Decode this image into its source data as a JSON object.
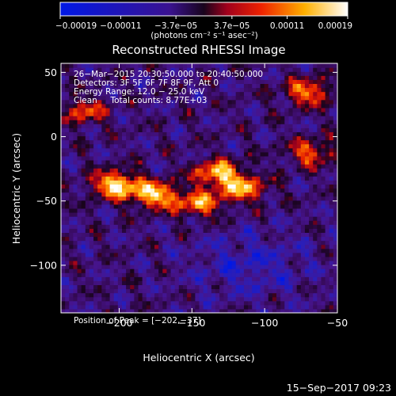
{
  "chart_data": {
    "type": "heatmap",
    "title": "Reconstructed RHESSI Image",
    "xlabel": "Heliocentric X (arcsec)",
    "ylabel": "Heliocentric Y (arcsec)",
    "xlim": [
      -240,
      -50
    ],
    "ylim": [
      -137,
      57
    ],
    "x_ticks": [
      -200,
      -150,
      -100,
      -50
    ],
    "y_ticks": [
      50,
      0,
      -50,
      -100
    ],
    "x_tick_labels": [
      "−200",
      "−150",
      "−100",
      "−50"
    ],
    "y_tick_labels": [
      "50",
      "0",
      "−50",
      "−100"
    ],
    "colorbar": {
      "min": -0.00019,
      "max": 0.00019,
      "tick_values": [
        -0.00019,
        -0.00011,
        -3.7e-05,
        3.7e-05,
        0.00011,
        0.00019
      ],
      "tick_labels": [
        "−0.00019",
        "−0.00011",
        "−3.7e−05",
        "3.7e−05",
        "0.00011",
        "0.00019"
      ],
      "units": "(photons cm⁻² s⁻¹ asec⁻²)"
    },
    "annotations": [
      "26−Mar−2015 20:30:50.000 to 20:40:50.000",
      "Detectors: 3F 5F 6F 7F 8F 9F, Att 0",
      "Energy Range: 12.0 − 25.0 keV",
      "Clean     Total counts: 8.77E+03"
    ],
    "peak_label": "Position of Peak = [−202,−37]",
    "peak": [
      -202,
      -37
    ],
    "bright_regions": [
      {
        "x": -202,
        "y": -37,
        "level": 1.0
      },
      {
        "x": -175,
        "y": -45,
        "level": 0.9
      },
      {
        "x": -132,
        "y": -28,
        "level": 0.85
      },
      {
        "x": -115,
        "y": -40,
        "level": 0.75
      },
      {
        "x": -145,
        "y": -52,
        "level": 0.7
      },
      {
        "x": -70,
        "y": 35,
        "level": 0.7
      },
      {
        "x": -68,
        "y": -12,
        "level": 0.6
      },
      {
        "x": -225,
        "y": 20,
        "level": 0.55
      }
    ]
  },
  "footer": {
    "timestamp": "15−Sep−2017 09:23"
  }
}
